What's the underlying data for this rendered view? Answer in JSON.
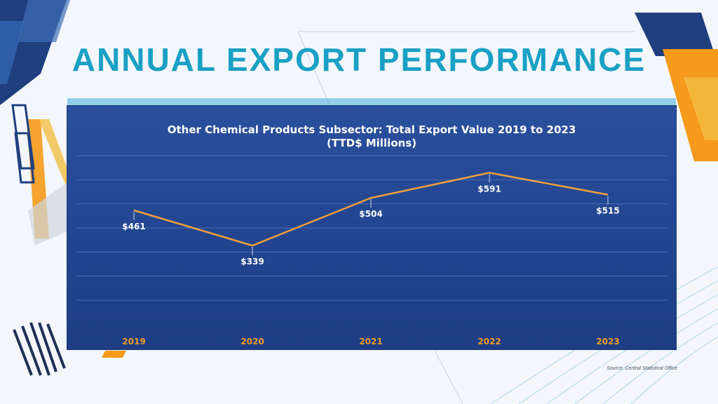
{
  "slide": {
    "title": "ANNUAL EXPORT PERFORMANCE",
    "source": "Source: Central Statistical Office"
  },
  "colors": {
    "title": "#1aa0c4",
    "panel": "#234590",
    "line": "#f0a03c",
    "tick": "#f39a22",
    "accent_orange": "#f59a1b",
    "accent_navy": "#1f3f7e"
  },
  "chart_data": {
    "type": "line",
    "title": "Other Chemical Products Subsector: Total Export Value 2019 to 2023",
    "subtitle": "(TTD$ Millions)",
    "categories": [
      "2019",
      "2020",
      "2021",
      "2022",
      "2023"
    ],
    "series": [
      {
        "name": "Total Export Value",
        "values": [
          461,
          339,
          504,
          591,
          515
        ]
      }
    ],
    "data_labels": [
      "$461",
      "$339",
      "$504",
      "$591",
      "$515"
    ],
    "xlabel": "",
    "ylabel": "",
    "ylim": [
      0,
      700
    ],
    "grid": true,
    "legend": "none"
  }
}
